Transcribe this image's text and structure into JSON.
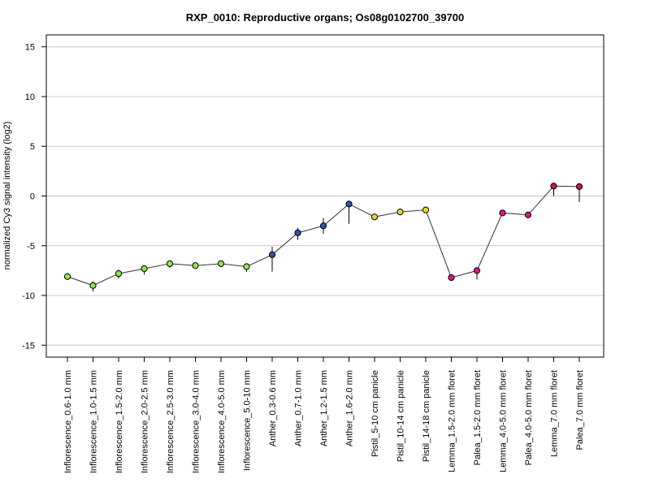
{
  "chart_data": {
    "type": "line",
    "title": "RXP_0010: Reproductive organs; Os08g0102700_39700",
    "xlabel": "",
    "ylabel": "normalized Cy3 signal intensity (log2)",
    "ylim": [
      -16.2,
      16.2
    ],
    "yticks": [
      -15,
      -10,
      -5,
      0,
      5,
      10,
      15
    ],
    "grid": true,
    "categories": [
      "Inflorescence_0.6-1.0 mm",
      "Inflorescence_1.0-1.5 mm",
      "Inflorescence_1.5-2.0 mm",
      "Inflorescence_2.0-2.5 mm",
      "Inflorescence_2.5-3.0 mm",
      "Inflorescence_3.0-4.0 mm",
      "Inflorescence_4.0-5.0 mm",
      "Inflorescence_5.0-10 mm",
      "Anther_0.3-0.6 mm",
      "Anther_0.7-1.0 mm",
      "Anther_1.2-1.5 mm",
      "Anther_1.6-2.0 mm",
      "Pistil_5-10 cm panicle",
      "Pistil_10-14 cm panicle",
      "Pistil_14-18 cm panicle",
      "Lemma_1.5-2.0 mm floret",
      "Palea_1.5-2.0 mm floret",
      "Lemma_4.0-5.0 mm floret",
      "Palea_4.0-5.0 mm floret",
      "Lemma_7.0 mm floret",
      "Palea_7.0 mm floret"
    ],
    "series": [
      {
        "values": [
          -8.1,
          -9.0,
          -7.8,
          -7.3,
          -6.8,
          -7.0,
          -6.8,
          -7.1,
          -5.9,
          -3.7,
          -3.0,
          -0.8,
          -2.1,
          -1.6,
          -1.4,
          -8.2,
          -7.5,
          -1.7,
          -1.9,
          1.0,
          0.95
        ],
        "error_low": [
          -8.1,
          -9.6,
          -8.3,
          -7.9,
          -7.2,
          -7.0,
          -6.8,
          -7.6,
          -7.6,
          -4.4,
          -3.8,
          -2.8,
          -2.2,
          -1.7,
          -1.5,
          -8.3,
          -8.4,
          -1.9,
          -1.9,
          0.0,
          -0.6
        ],
        "error_high": [
          -8.1,
          -8.6,
          -7.4,
          -7.0,
          -6.6,
          -7.0,
          -6.8,
          -6.8,
          -5.1,
          -3.2,
          -2.2,
          -0.7,
          -2.0,
          -1.5,
          -1.3,
          -8.1,
          -7.3,
          -1.4,
          -1.9,
          1.1,
          1.0
        ],
        "colors": [
          "#8ee64a",
          "#8ee64a",
          "#8ee64a",
          "#8ee64a",
          "#8ee64a",
          "#8ee64a",
          "#8ee64a",
          "#8ee64a",
          "#2f52b0",
          "#2f52b0",
          "#2f52b0",
          "#2f52b0",
          "#e6d634",
          "#e6d634",
          "#e6d634",
          "#e0158a",
          "#e0158a",
          "#e0158a",
          "#e0158a",
          "#cc1155",
          "#cc1155"
        ]
      }
    ]
  }
}
